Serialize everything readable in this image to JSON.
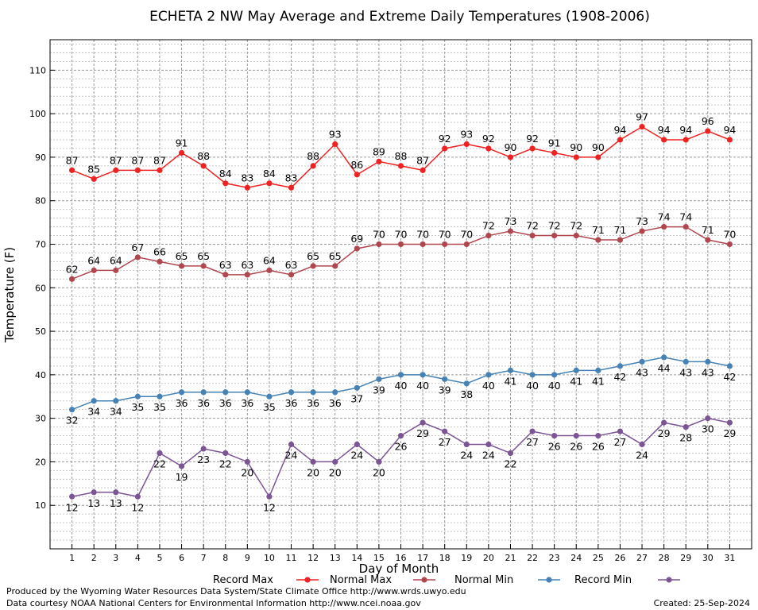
{
  "chart_data": {
    "type": "line",
    "title": "ECHETA 2 NW May Average and Extreme Daily Temperatures (1908-2006)",
    "xlabel": "Day of Month",
    "ylabel": "Temperature (F)",
    "x": [
      1,
      2,
      3,
      4,
      5,
      6,
      7,
      8,
      9,
      10,
      11,
      12,
      13,
      14,
      15,
      16,
      17,
      18,
      19,
      20,
      21,
      22,
      23,
      24,
      25,
      26,
      27,
      28,
      29,
      30,
      31
    ],
    "xlim": [
      0,
      32
    ],
    "ylim": [
      0,
      117
    ],
    "yticks": [
      10,
      20,
      30,
      40,
      50,
      60,
      70,
      80,
      90,
      100,
      110
    ],
    "grid": true,
    "legend_position": "bottom",
    "series": [
      {
        "name": "Record Max",
        "color": "#ee2222",
        "label_position": "above",
        "values": [
          87,
          85,
          87,
          87,
          87,
          91,
          88,
          84,
          83,
          84,
          83,
          88,
          93,
          86,
          89,
          88,
          87,
          92,
          93,
          92,
          90,
          92,
          91,
          90,
          90,
          94,
          97,
          94,
          94,
          96,
          94
        ]
      },
      {
        "name": "Normal Max",
        "color": "#b0474f",
        "label_position": "above",
        "values": [
          62,
          64,
          64,
          67,
          66,
          65,
          65,
          63,
          63,
          64,
          63,
          65,
          65,
          69,
          70,
          70,
          70,
          70,
          70,
          72,
          73,
          72,
          72,
          72,
          71,
          71,
          73,
          74,
          74,
          71,
          70
        ]
      },
      {
        "name": "Normal Min",
        "color": "#4682b4",
        "label_position": "below",
        "values": [
          32,
          34,
          34,
          35,
          35,
          36,
          36,
          36,
          36,
          35,
          36,
          36,
          36,
          37,
          39,
          40,
          40,
          39,
          38,
          40,
          41,
          40,
          40,
          41,
          41,
          42,
          43,
          44,
          43,
          43,
          42
        ]
      },
      {
        "name": "Record Min",
        "color": "#7b5594",
        "label_position": "below",
        "values": [
          12,
          13,
          13,
          12,
          22,
          19,
          23,
          22,
          20,
          12,
          24,
          20,
          20,
          24,
          20,
          26,
          29,
          27,
          24,
          24,
          22,
          27,
          26,
          26,
          26,
          27,
          24,
          29,
          28,
          30,
          29
        ]
      }
    ]
  },
  "footer": {
    "produced_by": "Produced by the Wyoming Water Resources Data System/State Climate Office http://www.wrds.uwyo.edu",
    "courtesy": "Data courtesy NOAA National Centers for Environmental Information http://www.ncei.noaa.gov",
    "created": "Created:  25-Sep-2024"
  }
}
